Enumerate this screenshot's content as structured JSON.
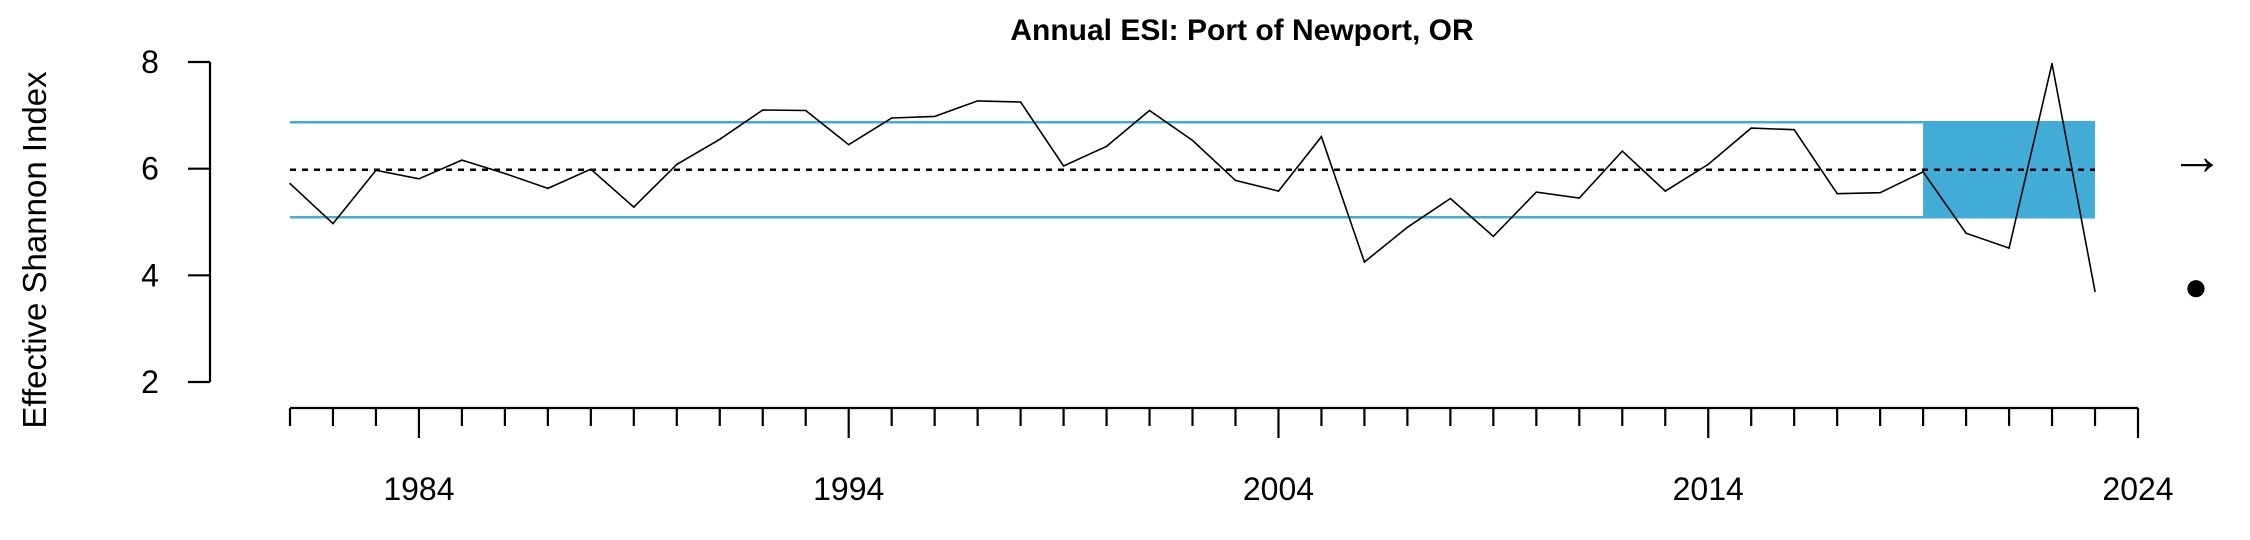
{
  "chart_data": {
    "type": "line",
    "title": "Annual ESI: Port of Newport, OR",
    "xlabel": "",
    "ylabel": "Effective Shannon Index",
    "xlim": [
      1981,
      2024
    ],
    "ylim": [
      2,
      8
    ],
    "x_ticks": [
      1984,
      1994,
      2004,
      2014,
      2024
    ],
    "y_ticks": [
      2,
      4,
      6,
      8
    ],
    "x": [
      1981,
      1982,
      1983,
      1984,
      1985,
      1986,
      1987,
      1988,
      1989,
      1990,
      1991,
      1992,
      1993,
      1994,
      1995,
      1996,
      1997,
      1998,
      1999,
      2000,
      2001,
      2002,
      2003,
      2004,
      2005,
      2006,
      2007,
      2008,
      2009,
      2010,
      2011,
      2012,
      2013,
      2014,
      2015,
      2016,
      2017,
      2018,
      2019,
      2020,
      2021,
      2022,
      2023
    ],
    "values": [
      5.72,
      4.97,
      5.97,
      5.81,
      6.16,
      5.91,
      5.63,
      5.99,
      5.28,
      6.08,
      6.55,
      7.1,
      7.09,
      6.45,
      6.95,
      6.98,
      7.27,
      7.25,
      6.05,
      6.42,
      7.09,
      6.53,
      5.78,
      5.58,
      6.6,
      4.25,
      4.9,
      5.44,
      4.73,
      5.56,
      5.45,
      6.33,
      5.58,
      6.08,
      6.76,
      6.73,
      5.53,
      5.55,
      5.94,
      4.79,
      4.51,
      7.97,
      3.7
    ],
    "mean": 5.98,
    "upper_sd": 6.87,
    "lower_sd": 5.09,
    "recent_window": [
      2019,
      2023
    ],
    "trend_symbol": "→",
    "mean_symbol": "●",
    "colors": {
      "line": "#000000",
      "band": "#41ADD6",
      "sd_line": "#41ADD6"
    }
  }
}
